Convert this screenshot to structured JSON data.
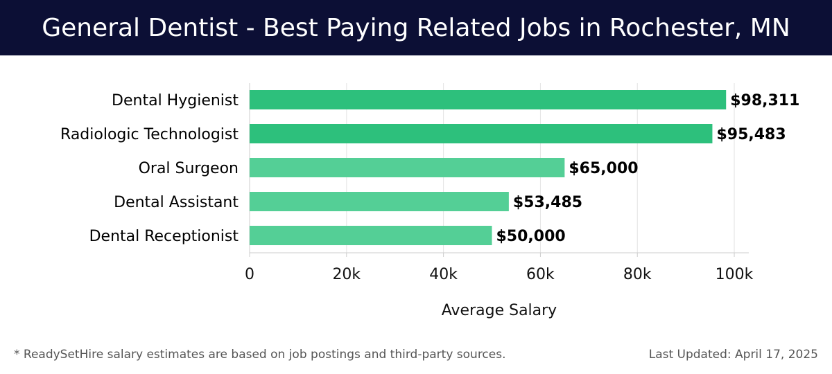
{
  "header": {
    "title": "General Dentist - Best Paying Related Jobs in Rochester, MN"
  },
  "chart_data": {
    "type": "bar",
    "orientation": "horizontal",
    "categories": [
      "Dental Hygienist",
      "Radiologic Technologist",
      "Oral Surgeon",
      "Dental Assistant",
      "Dental Receptionist"
    ],
    "values": [
      98311,
      95483,
      65000,
      53485,
      50000
    ],
    "value_labels": [
      "$98,311",
      "$95,483",
      "$65,000",
      "$53,485",
      "$50,000"
    ],
    "xlabel": "Average Salary",
    "ylabel": "",
    "xlim": [
      0,
      103000
    ],
    "xticks": [
      0,
      20000,
      40000,
      60000,
      80000,
      100000
    ],
    "xtick_labels": [
      "0",
      "20k",
      "40k",
      "60k",
      "80k",
      "100k"
    ],
    "grid": true,
    "colors": {
      "top": "#2dc07c",
      "rest": "#54cf96",
      "grid": "#e3e3e3",
      "axis": "#cccccc",
      "label": "#000000"
    }
  },
  "footer": {
    "note": "* ReadySetHire salary estimates are based on job postings and third-party sources.",
    "updated": "Last Updated: April 17, 2025"
  }
}
